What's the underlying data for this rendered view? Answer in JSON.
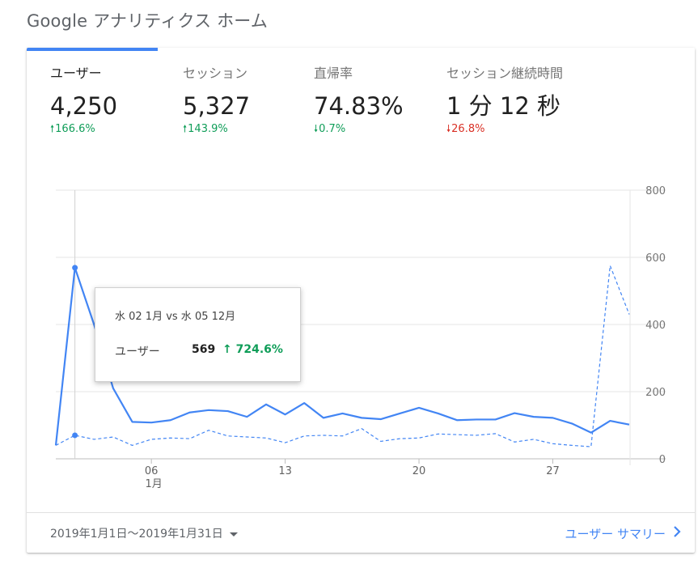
{
  "page": {
    "title": "Google アナリティクス ホーム"
  },
  "metrics": [
    {
      "label": "ユーザー",
      "value": "4,250",
      "change": "166.6%",
      "direction": "up"
    },
    {
      "label": "セッション",
      "value": "5,327",
      "change": "143.9%",
      "direction": "up"
    },
    {
      "label": "直帰率",
      "value": "74.83%",
      "change": "0.7%",
      "direction": "down-good"
    },
    {
      "label": "セッション継続時間",
      "value": "1 分 12 秒",
      "change": "26.8%",
      "direction": "down-bad"
    }
  ],
  "tooltip": {
    "date": "水 02 1月 vs 水 05 12月",
    "metric": "ユーザー",
    "value": "569",
    "change": "↑ 724.6%"
  },
  "footer": {
    "date_range": "2019年1月1日～2019年1月31日",
    "summary_link": "ユーザー サマリー"
  },
  "colors": {
    "accent": "#4285f4",
    "up": "#0f9d58",
    "down": "#d93025"
  },
  "chart_data": {
    "type": "line",
    "ylim": [
      0,
      800
    ],
    "y_ticks": [
      "800",
      "600",
      "400",
      "200",
      "0"
    ],
    "x_ticks": [
      {
        "label": "06",
        "sub": "1月",
        "day": 6
      },
      {
        "label": "13",
        "sub": "",
        "day": 13
      },
      {
        "label": "20",
        "sub": "",
        "day": 20
      },
      {
        "label": "27",
        "sub": "",
        "day": 27
      }
    ],
    "x": [
      1,
      2,
      3,
      4,
      5,
      6,
      7,
      8,
      9,
      10,
      11,
      12,
      13,
      14,
      15,
      16,
      17,
      18,
      19,
      20,
      21,
      22,
      23,
      24,
      25,
      26,
      27,
      28,
      29,
      30,
      31
    ],
    "series": [
      {
        "values": [
          40,
          569,
          400,
          210,
          110,
          108,
          115,
          138,
          145,
          142,
          125,
          162,
          132,
          166,
          122,
          135,
          122,
          118,
          135,
          152,
          135,
          115,
          117,
          117,
          136,
          125,
          122,
          105,
          78,
          113,
          102
        ],
        "style": "solid"
      },
      {
        "values": [
          40,
          70,
          58,
          65,
          40,
          58,
          62,
          60,
          85,
          68,
          65,
          62,
          48,
          68,
          70,
          68,
          90,
          52,
          60,
          62,
          74,
          72,
          70,
          75,
          50,
          58,
          45,
          40,
          36,
          575,
          430
        ],
        "style": "dashed"
      }
    ],
    "highlight_day": 2
  }
}
